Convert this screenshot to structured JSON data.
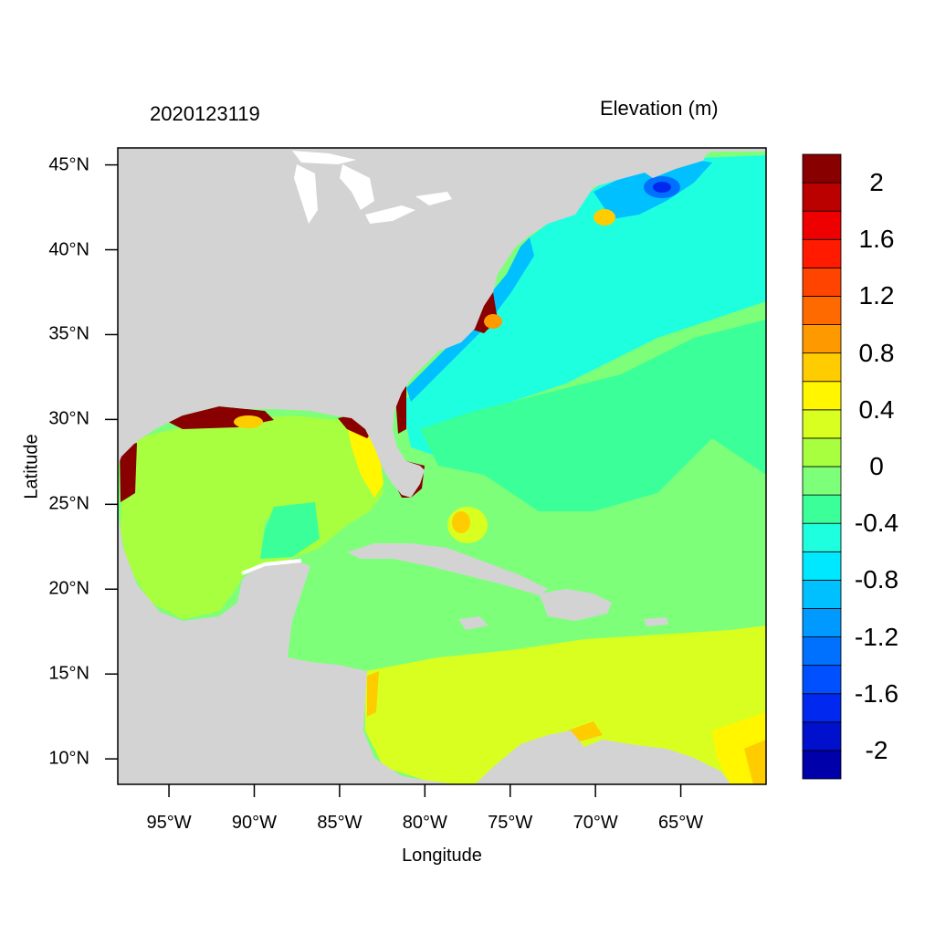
{
  "header": {
    "timestamp": "2020123119",
    "variable": "Elevation (m)"
  },
  "map": {
    "lon_range": [
      -98,
      -60
    ],
    "lat_range": [
      8.5,
      46
    ],
    "land_color": "#d3d3d3",
    "lakes_color": "#ffffff",
    "xlabel": "Longitude",
    "ylabel": "Latitude",
    "lat_ticks": [
      {
        "value": 45,
        "label": "45°N"
      },
      {
        "value": 40,
        "label": "40°N"
      },
      {
        "value": 35,
        "label": "35°N"
      },
      {
        "value": 30,
        "label": "30°N"
      },
      {
        "value": 25,
        "label": "25°N"
      },
      {
        "value": 20,
        "label": "20°N"
      },
      {
        "value": 15,
        "label": "15°N"
      },
      {
        "value": 10,
        "label": "10°N"
      }
    ],
    "lon_ticks": [
      {
        "value": -95,
        "label": "95°W"
      },
      {
        "value": -90,
        "label": "90°W"
      },
      {
        "value": -85,
        "label": "85°W"
      },
      {
        "value": -80,
        "label": "80°W"
      },
      {
        "value": -75,
        "label": "75°W"
      },
      {
        "value": -70,
        "label": "70°W"
      },
      {
        "value": -65,
        "label": "65°W"
      }
    ]
  },
  "colorbar": {
    "colors": [
      "#0000aa",
      "#0010cc",
      "#0028ee",
      "#0050ff",
      "#0070ff",
      "#0099ff",
      "#00c0ff",
      "#00e8ff",
      "#1effe0",
      "#3bff98",
      "#7dff7a",
      "#a8ff40",
      "#d8ff20",
      "#fff600",
      "#ffcc00",
      "#ff9900",
      "#ff6a00",
      "#ff4400",
      "#ff1a00",
      "#ee0000",
      "#bb0000",
      "#880000"
    ],
    "labels": [
      {
        "value": 2,
        "label": "2"
      },
      {
        "value": 1.6,
        "label": "1.6"
      },
      {
        "value": 1.2,
        "label": "1.2"
      },
      {
        "value": 0.8,
        "label": "0.8"
      },
      {
        "value": 0.4,
        "label": "0.4"
      },
      {
        "value": 0,
        "label": "0"
      },
      {
        "value": -0.4,
        "label": "-0.4"
      },
      {
        "value": -0.8,
        "label": "-0.8"
      },
      {
        "value": -1.2,
        "label": "-1.2"
      },
      {
        "value": -1.6,
        "label": "-1.6"
      },
      {
        "value": -2,
        "label": "-2"
      }
    ]
  }
}
